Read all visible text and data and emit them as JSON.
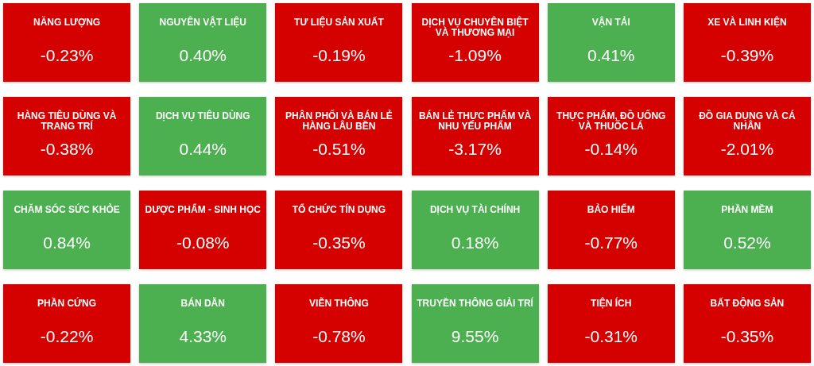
{
  "chart_data": {
    "type": "other",
    "categories": [
      "NĂNG LƯỢNG",
      "NGUYÊN VẬT LIỆU",
      "TƯ LIỆU SẢN XUẤT",
      "DỊCH VỤ CHUYÊN BIỆT VÀ THƯƠNG MẠI",
      "VẬN TẢI",
      "XE VÀ LINH KIỆN",
      "HÀNG TIÊU DÙNG VÀ TRANG TRÍ",
      "DỊCH VỤ TIÊU DÙNG",
      "PHÂN PHỐI VÀ BÁN LẺ HÀNG LÂU BỀN",
      "BÁN LẺ THỰC PHẨM VÀ NHU YẾU PHẨM",
      "THỰC PHẨM, ĐỒ UỐNG VÀ THUỐC LÁ",
      "ĐỒ GIA DỤNG VÀ CÁ NHÂN",
      "CHĂM SÓC SỨC KHỎE",
      "DƯỢC PHẨM - SINH HỌC",
      "TỔ CHỨC TÍN DỤNG",
      "DỊCH VỤ TÀI CHÍNH",
      "BẢO HIỂM",
      "PHẦN MỀM",
      "PHẦN CỨNG",
      "BÁN DẪN",
      "VIỄN THÔNG",
      "TRUYỀN THÔNG GIẢI TRÍ",
      "TIỆN ÍCH",
      "BẤT ĐỘNG SẢN"
    ],
    "values": [
      -0.23,
      0.4,
      -0.19,
      -1.09,
      0.41,
      -0.39,
      -0.38,
      0.44,
      -0.51,
      -3.17,
      -0.14,
      -2.01,
      0.84,
      -0.08,
      -0.35,
      0.18,
      -0.77,
      0.52,
      -0.22,
      4.33,
      -0.78,
      9.55,
      -0.31,
      -0.35
    ],
    "value_labels": [
      "-0.23%",
      "0.40%",
      "-0.19%",
      "-1.09%",
      "0.41%",
      "-0.39%",
      "-0.38%",
      "0.44%",
      "-0.51%",
      "-3.17%",
      "-0.14%",
      "-2.01%",
      "0.84%",
      "-0.08%",
      "-0.35%",
      "0.18%",
      "-0.77%",
      "0.52%",
      "-0.22%",
      "4.33%",
      "-0.78%",
      "9.55%",
      "-0.31%",
      "-0.35%"
    ],
    "colors": [
      "#d50000",
      "#4caf50",
      "#d50000",
      "#d50000",
      "#4caf50",
      "#d50000",
      "#d50000",
      "#4caf50",
      "#d50000",
      "#d50000",
      "#d50000",
      "#d50000",
      "#4caf50",
      "#d50000",
      "#d50000",
      "#4caf50",
      "#d50000",
      "#4caf50",
      "#d50000",
      "#4caf50",
      "#d50000",
      "#4caf50",
      "#d50000",
      "#d50000"
    ]
  }
}
